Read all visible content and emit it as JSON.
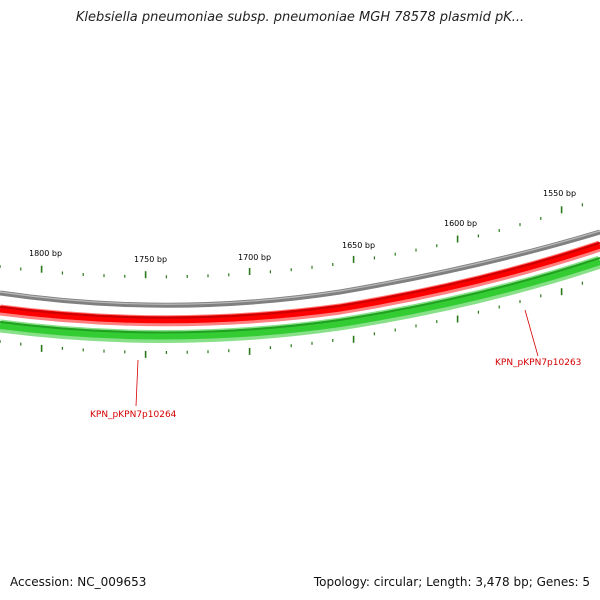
{
  "title": "Klebsiella pneumoniae subsp. pneumoniae MGH 78578 plasmid pK...",
  "ruler": {
    "labels": [
      "1550 bp",
      "1600 bp",
      "1650 bp",
      "1700 bp",
      "1750 bp",
      "1800 bp"
    ]
  },
  "genes": [
    {
      "label": "KPN_pKPN7p10263"
    },
    {
      "label": "KPN_pKPN7p10264"
    }
  ],
  "colors": {
    "backbone": "#808080",
    "reverse_track": "#ff0000",
    "forward_track": "#33cc33",
    "tick": "#2a7a1a",
    "gene_label": "#d40000"
  },
  "footer": {
    "accession": "Accession: NC_009653",
    "summary": "Topology: circular; Length: 3,478 bp; Genes: 5"
  }
}
